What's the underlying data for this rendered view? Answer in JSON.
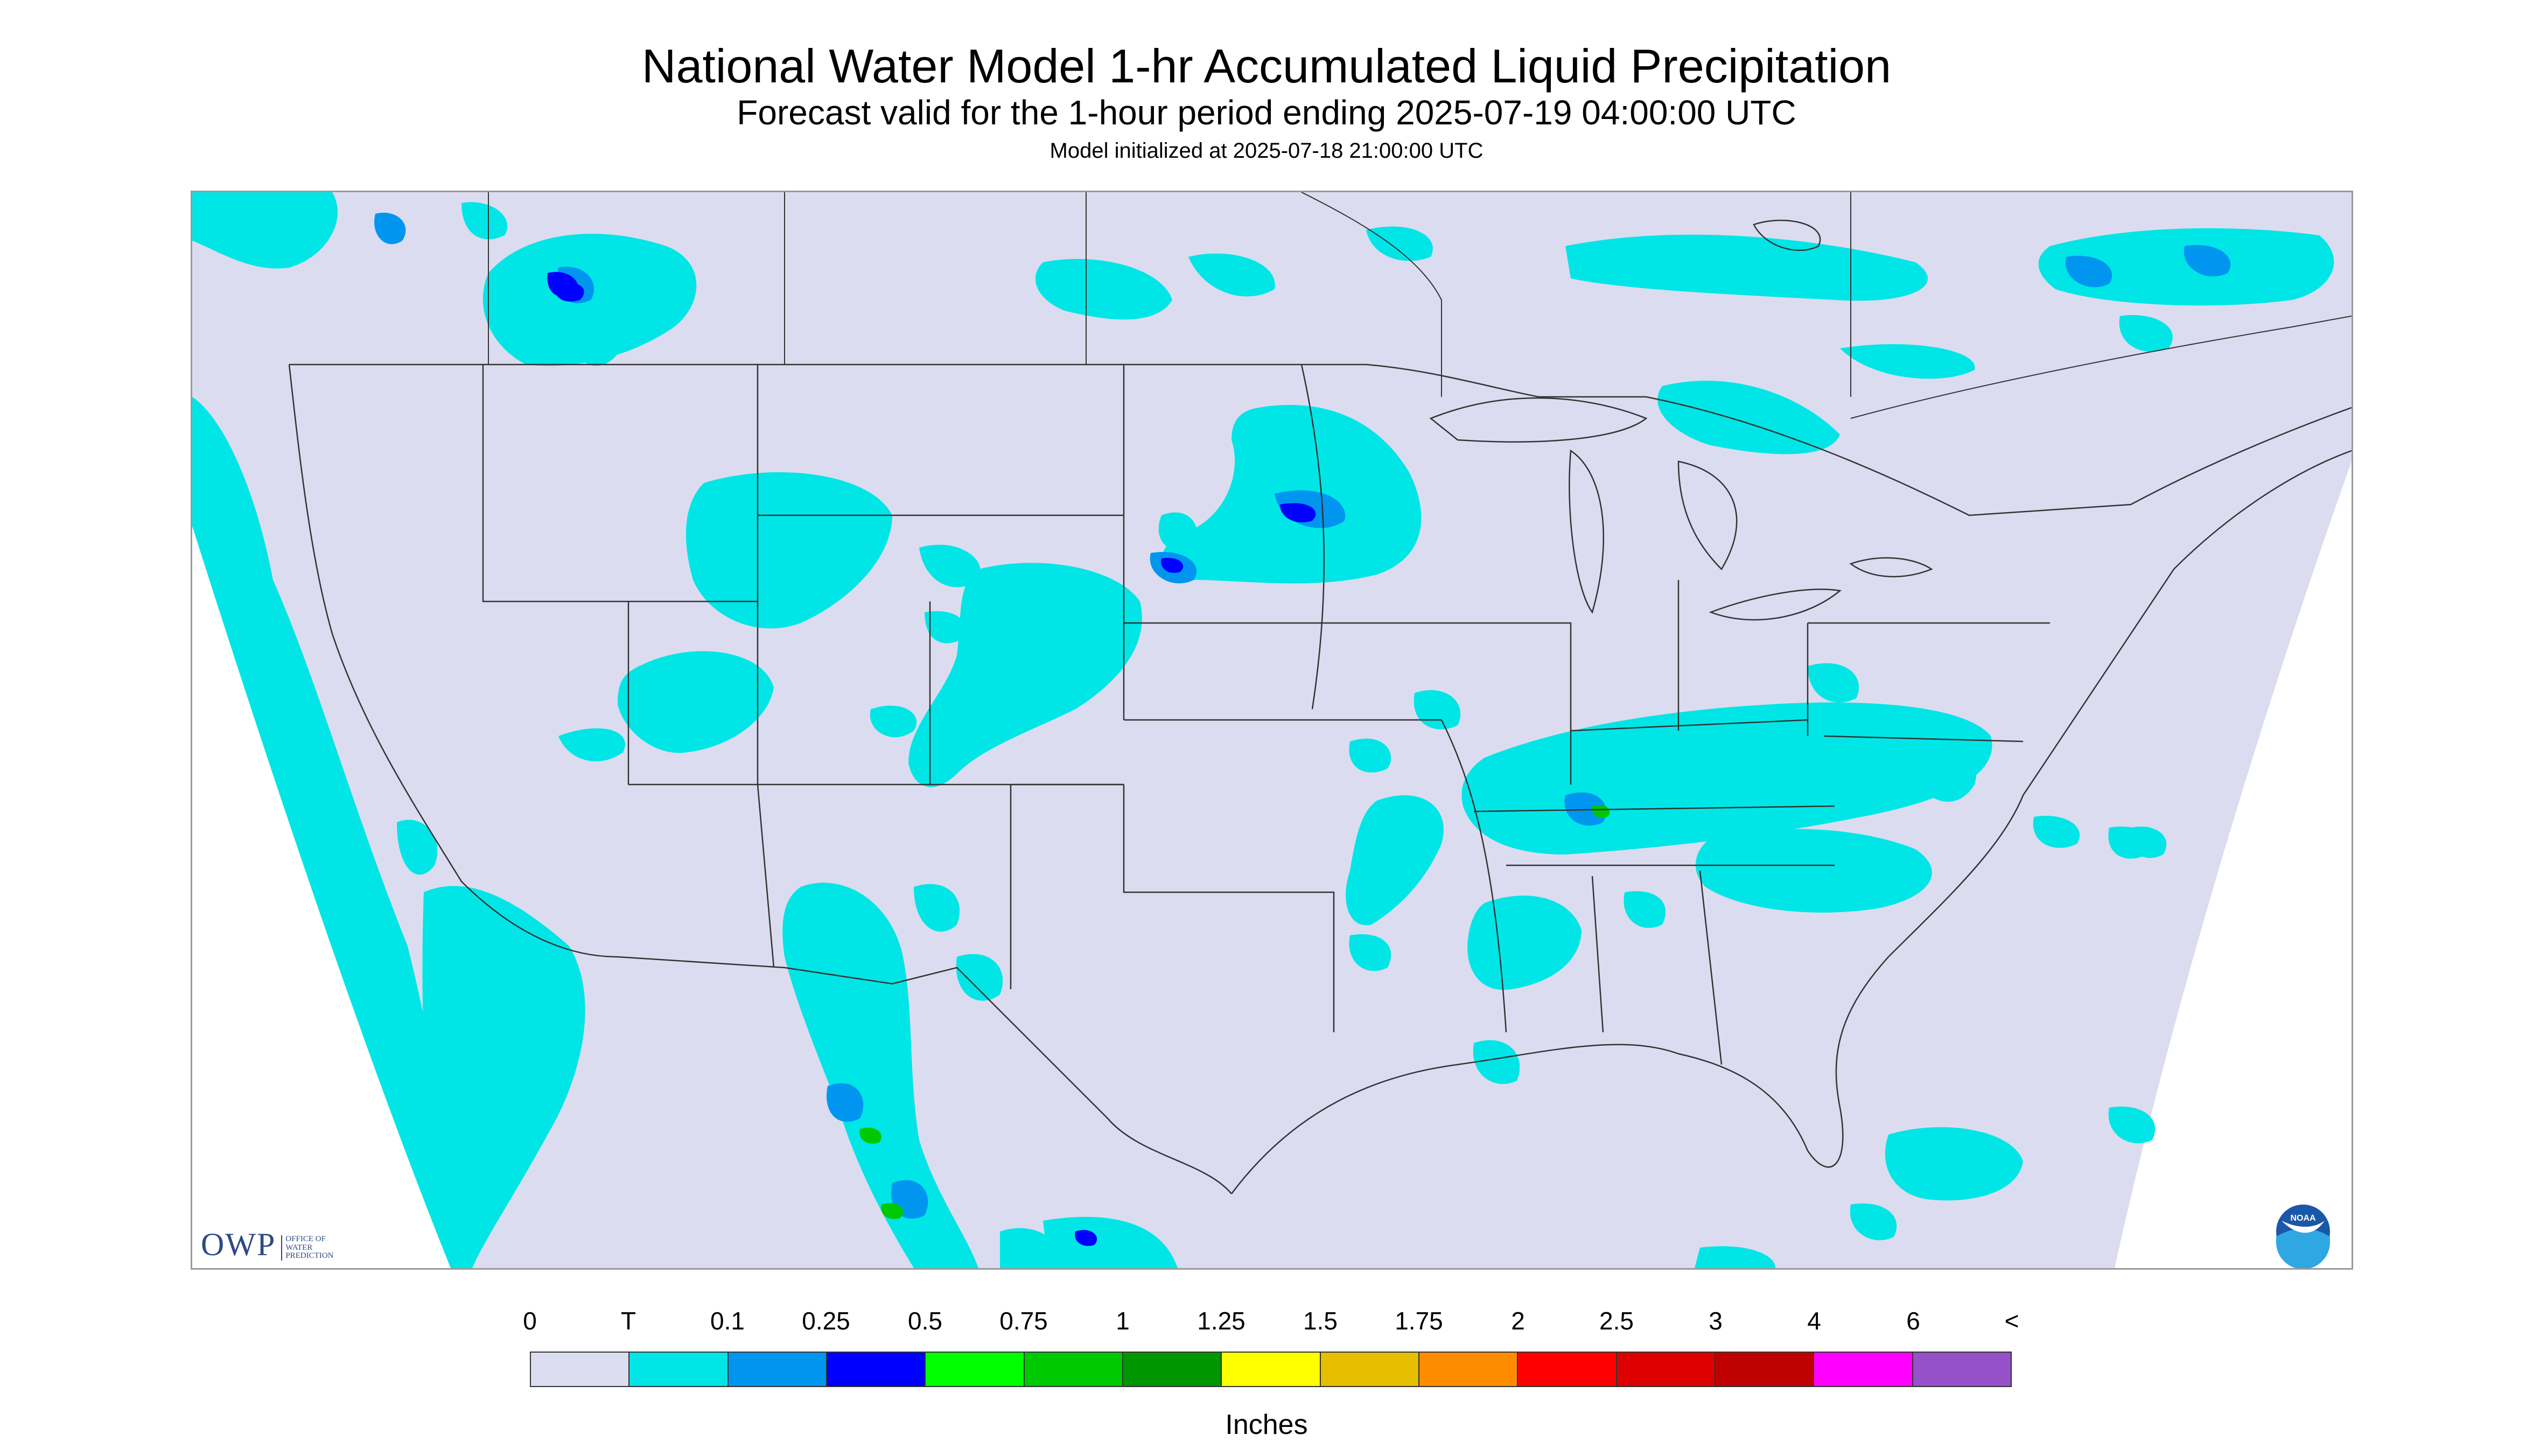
{
  "header": {
    "title": "National Water Model 1-hr Accumulated Liquid Precipitation",
    "subtitle": "Forecast valid for the 1-hour period ending 2025-07-19 04:00:00 UTC",
    "init": "Model initialized at 2025-07-18 21:00:00 UTC"
  },
  "logos": {
    "owp_text": "OWP",
    "owp_subtitle_lines": [
      "OFFICE OF",
      "WATER",
      "PREDICTION"
    ],
    "noaa_text": "NOAA"
  },
  "legend": {
    "tick_labels": [
      "0",
      "T",
      "0.1",
      "0.25",
      "0.5",
      "0.75",
      "1",
      "1.25",
      "1.5",
      "1.75",
      "2",
      "2.5",
      "3",
      "4",
      "6",
      "<"
    ],
    "colors": [
      "#dcdcf0",
      "#00e6e6",
      "#0096f0",
      "#0000ff",
      "#00ff00",
      "#00c800",
      "#009600",
      "#ffff00",
      "#e6be00",
      "#ff8c00",
      "#ff0000",
      "#dc0000",
      "#be0000",
      "#ff00ff",
      "#9650c8"
    ],
    "units": "Inches"
  },
  "map_colors": {
    "background": "#dcdcf0",
    "trace": "#00e6e6",
    "light": "#0096f0",
    "moderate": "#0000ff",
    "heavy": "#00c800",
    "borders": "#333333"
  }
}
